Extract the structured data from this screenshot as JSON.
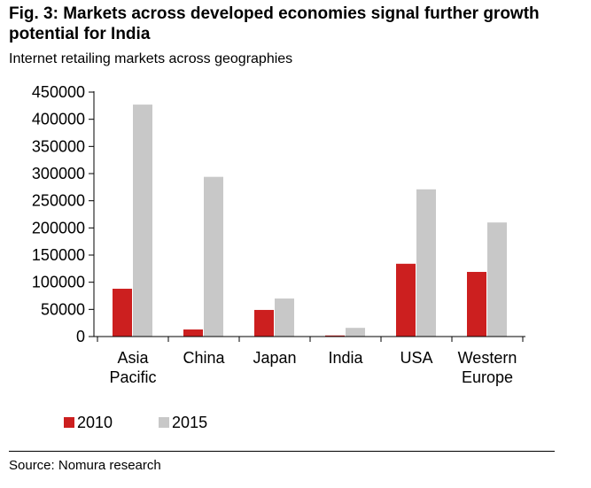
{
  "figure": {
    "title": "Fig. 3: Markets across developed economies signal further growth potential for India",
    "subtitle": "Internet retailing markets across geographies",
    "source": "Source: Nomura research"
  },
  "colors": {
    "series_2010": "#cc1f1f",
    "series_2015": "#c8c8c8",
    "axis": "#000000"
  },
  "chart_data": {
    "type": "bar",
    "title": "Internet retailing markets across geographies",
    "xlabel": "",
    "ylabel": "",
    "ylim": [
      0,
      450000
    ],
    "yticks": [
      "0",
      "50000",
      "100000",
      "150000",
      "200000",
      "250000",
      "300000",
      "350000",
      "400000",
      "450000"
    ],
    "categories": [
      [
        "Asia",
        "Pacific"
      ],
      [
        "China"
      ],
      [
        "Japan"
      ],
      [
        "India"
      ],
      [
        "USA"
      ],
      [
        "Western",
        "Europe"
      ]
    ],
    "series": [
      {
        "name": "2010",
        "values": [
          88000,
          13000,
          49000,
          2000,
          134000,
          119000
        ]
      },
      {
        "name": "2015",
        "values": [
          427000,
          294000,
          70000,
          16000,
          271000,
          210000
        ]
      }
    ],
    "legend_position": "bottom-left",
    "grid": false
  }
}
